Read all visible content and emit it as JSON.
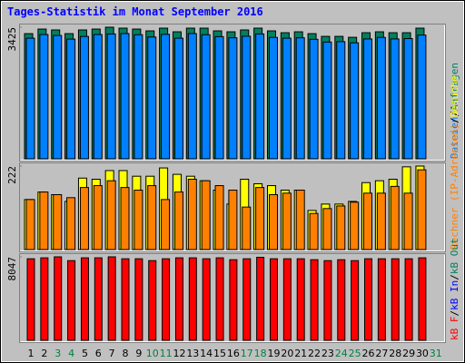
{
  "title": "Tages-Statistik im Monat September 2016",
  "legend_separator": "/",
  "categories": [
    1,
    2,
    3,
    4,
    5,
    6,
    7,
    8,
    9,
    10,
    11,
    12,
    13,
    14,
    15,
    16,
    17,
    18,
    19,
    20,
    21,
    22,
    23,
    24,
    25,
    26,
    27,
    28,
    29,
    30,
    31
  ],
  "category_colors": [
    "#000000",
    "#000000",
    "#008040",
    "#008040",
    "#000000",
    "#000000",
    "#000000",
    "#000000",
    "#000000",
    "#008040",
    "#008040",
    "#000000",
    "#000000",
    "#000000",
    "#000000",
    "#000000",
    "#008040",
    "#008040",
    "#000000",
    "#000000",
    "#000000",
    "#000000",
    "#000000",
    "#008040",
    "#008040",
    "#000000",
    "#000000",
    "#000000",
    "#000000",
    "#000000",
    "#008040"
  ],
  "chart_data": [
    {
      "type": "bar",
      "ylim": [
        0,
        3425
      ],
      "yticks": [
        3425
      ],
      "series": [
        {
          "name": "Anfragen",
          "color": "#008060",
          "values": [
            3258,
            3377,
            3354,
            3258,
            3354,
            3377,
            3425,
            3401,
            3377,
            3330,
            3401,
            3306,
            3401,
            3401,
            3330,
            3306,
            3354,
            3401,
            3330,
            3282,
            3306,
            3258,
            3187,
            3187,
            3163,
            3282,
            3306,
            3282,
            3282,
            3401,
            null
          ]
        },
        {
          "name": "Dateien",
          "color": "#0080FF",
          "values": [
            3140,
            3235,
            3210,
            3115,
            3185,
            3235,
            3250,
            3260,
            3230,
            3170,
            3240,
            3140,
            3260,
            3230,
            3180,
            3150,
            3190,
            3250,
            3160,
            3140,
            3150,
            3110,
            3040,
            3050,
            3020,
            3120,
            3160,
            3120,
            3130,
            3220,
            null
          ]
        }
      ]
    },
    {
      "type": "bar",
      "ylim": [
        0,
        222
      ],
      "yticks": [
        222
      ],
      "series": [
        {
          "name": "Besuche",
          "color": "#FFFF00",
          "values": [
            133,
            153,
            146,
            128,
            190,
            187,
            210,
            210,
            195,
            195,
            217,
            200,
            195,
            183,
            158,
            121,
            187,
            175,
            170,
            158,
            158,
            104,
            121,
            121,
            128,
            178,
            183,
            187,
            220,
            222,
            null
          ]
        },
        {
          "name": "Rechner (IP-Adressen)",
          "color": "#FF8000",
          "values": [
            133,
            153,
            146,
            138,
            165,
            170,
            183,
            165,
            158,
            170,
            133,
            153,
            187,
            183,
            170,
            158,
            113,
            165,
            146,
            150,
            158,
            96,
            109,
            116,
            126,
            150,
            150,
            168,
            150,
            212,
            null
          ]
        }
      ]
    },
    {
      "type": "bar",
      "ylim": [
        0,
        8047
      ],
      "yticks": [
        8047
      ],
      "series": [
        {
          "name": "kB F",
          "color": "#FF0000",
          "values": [
            7860,
            7950,
            8047,
            7680,
            7950,
            7950,
            8047,
            7860,
            7860,
            7680,
            7860,
            7950,
            7950,
            7860,
            7950,
            7770,
            7860,
            8000,
            7860,
            7860,
            7860,
            7770,
            7680,
            7770,
            7680,
            7860,
            7860,
            7860,
            7860,
            7950,
            null
          ]
        },
        {
          "name": "kB In",
          "color": "#0000FF",
          "values": [
            null,
            null,
            null,
            null,
            null,
            null,
            null,
            null,
            null,
            null,
            null,
            null,
            null,
            null,
            null,
            null,
            null,
            null,
            null,
            null,
            null,
            null,
            null,
            null,
            null,
            null,
            null,
            null,
            null,
            null,
            null
          ]
        },
        {
          "name": "kB Out",
          "color": "#008060",
          "values": [
            null,
            null,
            null,
            null,
            null,
            null,
            null,
            null,
            null,
            null,
            null,
            null,
            null,
            null,
            null,
            null,
            null,
            null,
            null,
            null,
            null,
            null,
            null,
            null,
            null,
            null,
            null,
            null,
            null,
            null,
            null
          ]
        }
      ]
    }
  ]
}
